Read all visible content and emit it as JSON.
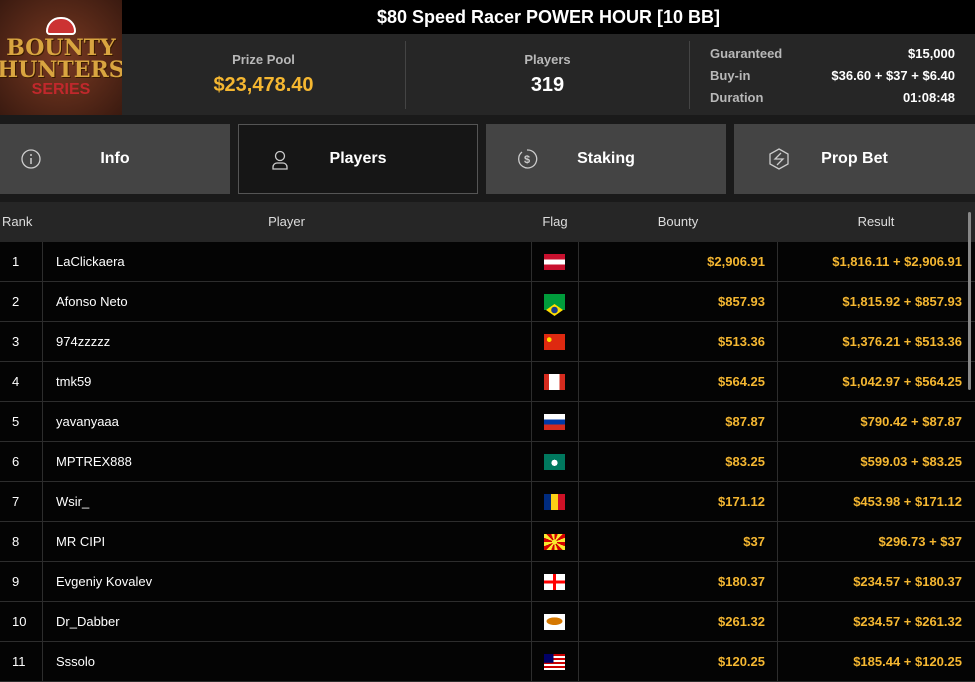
{
  "logo": {
    "line1": "BOUNTY",
    "line2": "HUNTERS",
    "line3": "SERIES"
  },
  "title": "$80 Speed Racer POWER HOUR [10 BB]",
  "prize_pool": {
    "label": "Prize Pool",
    "value": "$23,478.40"
  },
  "players": {
    "label": "Players",
    "value": "319"
  },
  "details": [
    {
      "label": "Guaranteed",
      "value": "$15,000"
    },
    {
      "label": "Buy-in",
      "value": "$36.60 + $37 + $6.40"
    },
    {
      "label": "Duration",
      "value": "01:08:48"
    }
  ],
  "tabs": [
    {
      "label": "Info",
      "icon": "info-icon"
    },
    {
      "label": "Players",
      "icon": "user-icon",
      "active": true
    },
    {
      "label": "Staking",
      "icon": "dollar-coin-icon"
    },
    {
      "label": "Prop Bet",
      "icon": "lightning-shield-icon"
    }
  ],
  "columns": {
    "rank": "Rank",
    "player": "Player",
    "flag": "Flag",
    "bounty": "Bounty",
    "result": "Result"
  },
  "colors": {
    "accent": "#f5b731"
  },
  "rows": [
    {
      "rank": "1",
      "player": "LaClickaera",
      "flag": "at",
      "bounty": "$2,906.91",
      "result": "$1,816.11 + $2,906.91"
    },
    {
      "rank": "2",
      "player": "Afonso Neto",
      "flag": "br",
      "bounty": "$857.93",
      "result": "$1,815.92 + $857.93"
    },
    {
      "rank": "3",
      "player": "974zzzzz",
      "flag": "cn",
      "bounty": "$513.36",
      "result": "$1,376.21 + $513.36"
    },
    {
      "rank": "4",
      "player": "tmk59",
      "flag": "ca",
      "bounty": "$564.25",
      "result": "$1,042.97 + $564.25"
    },
    {
      "rank": "5",
      "player": "yavanyaaa",
      "flag": "ru",
      "bounty": "$87.87",
      "result": "$790.42 + $87.87"
    },
    {
      "rank": "6",
      "player": "MPTREX888",
      "flag": "mo",
      "bounty": "$83.25",
      "result": "$599.03 + $83.25"
    },
    {
      "rank": "7",
      "player": "Wsir_",
      "flag": "ro",
      "bounty": "$171.12",
      "result": "$453.98 + $171.12"
    },
    {
      "rank": "8",
      "player": "MR CIPI",
      "flag": "mk",
      "bounty": "$37",
      "result": "$296.73 + $37"
    },
    {
      "rank": "9",
      "player": "Evgeniy Kovalev",
      "flag": "ge",
      "bounty": "$180.37",
      "result": "$234.57 + $180.37"
    },
    {
      "rank": "10",
      "player": "Dr_Dabber",
      "flag": "cy",
      "bounty": "$261.32",
      "result": "$234.57 + $261.32"
    },
    {
      "rank": "11",
      "player": "Sssolo",
      "flag": "my",
      "bounty": "$120.25",
      "result": "$185.44 + $120.25"
    }
  ]
}
